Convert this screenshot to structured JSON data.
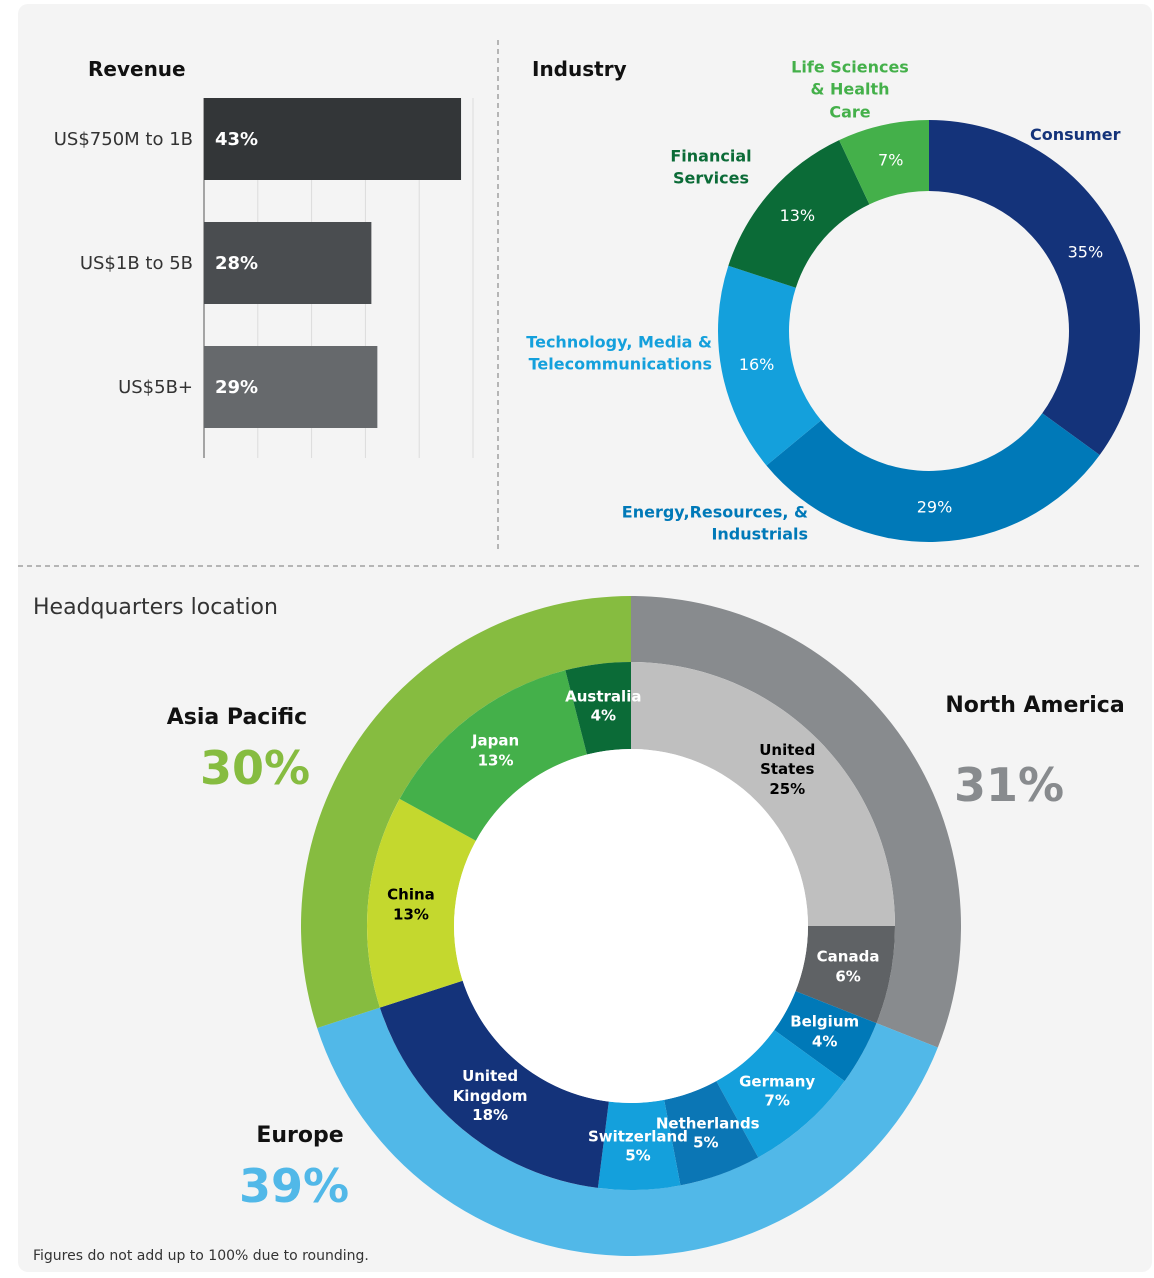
{
  "chart_data": [
    {
      "type": "bar",
      "orientation": "horizontal",
      "title": "Revenue",
      "categories": [
        "US$750M to 1B",
        "US$1B to 5B",
        "US$5B+"
      ],
      "values": [
        43,
        28,
        29
      ],
      "value_labels": [
        "43%",
        "28%",
        "29%"
      ],
      "colors": [
        "#333638",
        "#4a4d50",
        "#66696c"
      ],
      "xlim": [
        0,
        45
      ],
      "xticks": [
        0,
        9,
        18,
        27,
        36,
        45
      ],
      "grid": true
    },
    {
      "type": "pie",
      "title": "Industry",
      "categories": [
        "Consumer",
        "Energy,Resources, & Industrials",
        "Technology, Media & Telecommunications",
        "Financial Services",
        "Life Sciences & Health Care"
      ],
      "values": [
        35,
        29,
        16,
        13,
        7
      ],
      "value_labels": [
        "35%",
        "29%",
        "16%",
        "13%",
        "7%"
      ],
      "colors": [
        "#14337a",
        "#0079b8",
        "#14a0dc",
        "#0b6b37",
        "#44b04a"
      ]
    },
    {
      "type": "nested_pie",
      "title": "Headquarters location",
      "outer": {
        "categories": [
          "North America",
          "Europe",
          "Asia Pacific"
        ],
        "values": [
          31,
          39,
          30
        ],
        "value_labels": [
          "31%",
          "39%",
          "30%"
        ],
        "colors": [
          "#888b8e",
          "#51b8e8",
          "#86bc40"
        ]
      },
      "inner": {
        "categories": [
          "United States",
          "Canada",
          "Belgium",
          "Germany",
          "Netherlands",
          "Switzerland",
          "United Kingdom",
          "China",
          "Japan",
          "Australia"
        ],
        "values": [
          25,
          6,
          4,
          7,
          5,
          5,
          18,
          13,
          13,
          4
        ],
        "value_labels": [
          "25%",
          "6%",
          "4%",
          "7%",
          "5%",
          "5%",
          "18%",
          "13%",
          "13%",
          "4%"
        ],
        "colors": [
          "#bfbfbf",
          "#5f6265",
          "#0079b8",
          "#14a0dc",
          "#0b76b5",
          "#14a0dc",
          "#14337a",
          "#c4d82e",
          "#44b04a",
          "#0b6b37"
        ],
        "label_colors": [
          "#000000",
          "#ffffff",
          "#ffffff",
          "#ffffff",
          "#ffffff",
          "#ffffff",
          "#ffffff",
          "#000000",
          "#ffffff",
          "#ffffff"
        ]
      },
      "note": "Figures do not add up to 100% due to rounding."
    }
  ]
}
